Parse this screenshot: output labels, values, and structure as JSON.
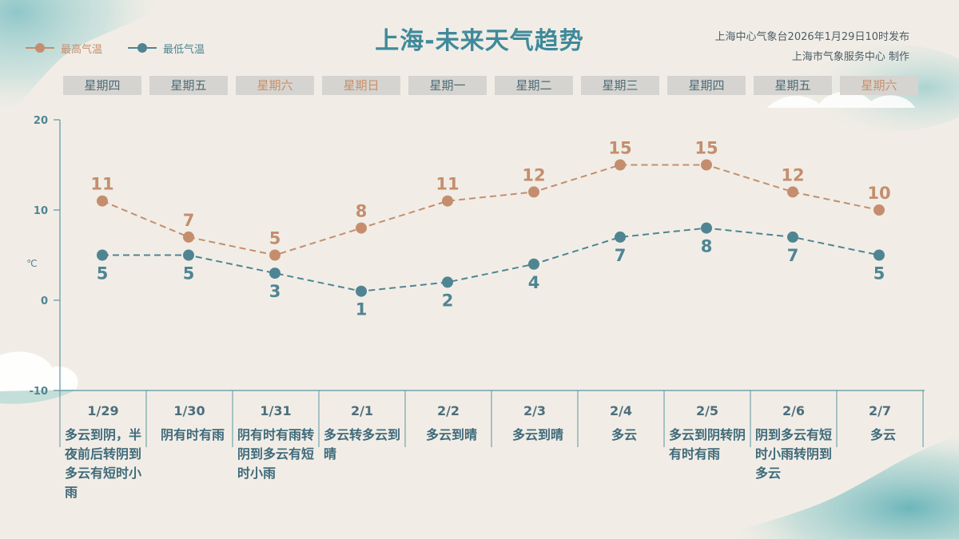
{
  "header": {
    "title": "上海-未来天气趋势",
    "issuer_line1": "上海中心气象台2026年1月29日10时发布",
    "issuer_line2": "上海市气象服务中心 制作"
  },
  "colors": {
    "high": "#c48e6e",
    "low": "#4f8593",
    "axis": "#5b95a3",
    "day_box": "#d6d4d0",
    "weekend_text": "#c88f69",
    "weekday_text": "#4c6b78"
  },
  "days": [
    {
      "weekday": "星期四",
      "weekend": false,
      "date": "1/29",
      "desc": "多云到阴，半夜前后转阴到多云有短时小雨"
    },
    {
      "weekday": "星期五",
      "weekend": false,
      "date": "1/30",
      "desc": "阴有时有雨"
    },
    {
      "weekday": "星期六",
      "weekend": true,
      "date": "1/31",
      "desc": "阴有时有雨转阴到多云有短时小雨"
    },
    {
      "weekday": "星期日",
      "weekend": true,
      "date": "2/1",
      "desc": "多云转多云到晴"
    },
    {
      "weekday": "星期一",
      "weekend": false,
      "date": "2/2",
      "desc": "多云到晴"
    },
    {
      "weekday": "星期二",
      "weekend": false,
      "date": "2/3",
      "desc": "多云到晴"
    },
    {
      "weekday": "星期三",
      "weekend": false,
      "date": "2/4",
      "desc": "多云"
    },
    {
      "weekday": "星期四",
      "weekend": false,
      "date": "2/5",
      "desc": "多云到阴转阴有时有雨"
    },
    {
      "weekday": "星期五",
      "weekend": false,
      "date": "2/6",
      "desc": "阴到多云有短时小雨转阴到多云"
    },
    {
      "weekday": "星期六",
      "weekend": true,
      "date": "2/7",
      "desc": "多云"
    }
  ],
  "chart_data": {
    "type": "line",
    "categories": [
      "1/29",
      "1/30",
      "1/31",
      "2/1",
      "2/2",
      "2/3",
      "2/4",
      "2/5",
      "2/6",
      "2/7"
    ],
    "series": [
      {
        "name": "最高气温",
        "values": [
          11,
          7,
          5,
          8,
          11,
          12,
          15,
          15,
          12,
          10
        ],
        "color": "#c48e6e"
      },
      {
        "name": "最低气温",
        "values": [
          5,
          5,
          3,
          1,
          2,
          4,
          7,
          8,
          7,
          5
        ],
        "color": "#4f8593"
      }
    ],
    "ylabel": "℃",
    "ylim": [
      -10,
      20
    ],
    "yticks": [
      "-10",
      "0",
      "10",
      "20"
    ],
    "legend": "top-left",
    "line_style": "dashed",
    "grid": false
  }
}
